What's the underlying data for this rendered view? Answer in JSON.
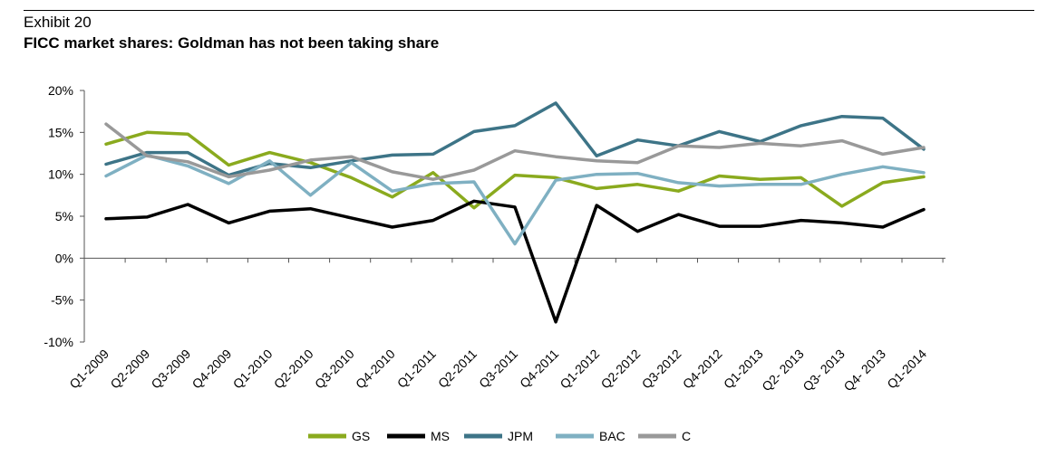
{
  "header": {
    "exhibit": "Exhibit 20",
    "title": "FICC market shares: Goldman has not been taking share"
  },
  "chart_data": {
    "type": "line",
    "title": "FICC market shares: Goldman has not been taking share",
    "xlabel": "",
    "ylabel": "",
    "ylim": [
      -10,
      20
    ],
    "yticks": [
      "20%",
      "15%",
      "10%",
      "5%",
      "0%",
      "-5%",
      "-10%"
    ],
    "ytick_values": [
      20,
      15,
      10,
      5,
      0,
      -5,
      -10
    ],
    "grid": false,
    "legend_position": "bottom",
    "categories": [
      "Q1-2009",
      "Q2-2009",
      "Q3-2009",
      "Q4-2009",
      "Q1-2010",
      "Q2-2010",
      "Q3-2010",
      "Q4-2010",
      "Q1-2011",
      "Q2-2011",
      "Q3-2011",
      "Q4-2011",
      "Q1-2012",
      "Q2-2012",
      "Q3-2012",
      "Q4-2012",
      "Q1-2013",
      "Q2- 2013",
      "Q3- 2013",
      "Q4- 2013",
      "Q1-2014"
    ],
    "series": [
      {
        "name": "GS",
        "color": "#8aaa1e",
        "values": [
          13.6,
          15.0,
          14.8,
          11.1,
          12.6,
          11.4,
          9.6,
          7.3,
          10.2,
          6.0,
          9.9,
          9.6,
          8.3,
          8.8,
          8.0,
          9.8,
          9.4,
          9.6,
          6.2,
          9.0,
          9.7
        ]
      },
      {
        "name": "MS",
        "color": "#000000",
        "values": [
          4.7,
          4.9,
          6.4,
          4.2,
          5.6,
          5.9,
          4.8,
          3.7,
          4.5,
          6.8,
          6.1,
          -7.6,
          6.3,
          3.2,
          5.2,
          3.8,
          3.8,
          4.5,
          4.2,
          3.7,
          5.8
        ]
      },
      {
        "name": "JPM",
        "color": "#3d7487",
        "values": [
          11.2,
          12.6,
          12.6,
          9.9,
          11.3,
          10.8,
          11.6,
          12.3,
          12.4,
          15.1,
          15.8,
          18.5,
          12.2,
          14.1,
          13.4,
          15.1,
          13.9,
          15.8,
          16.9,
          16.7,
          13.0
        ]
      },
      {
        "name": "BAC",
        "color": "#7fb0c2",
        "values": [
          9.8,
          12.3,
          11.0,
          8.9,
          11.6,
          7.5,
          11.4,
          8.0,
          8.9,
          9.1,
          1.7,
          9.3,
          10.0,
          10.1,
          9.0,
          8.6,
          8.8,
          8.8,
          10.0,
          10.9,
          10.2
        ]
      },
      {
        "name": "C",
        "color": "#999999",
        "values": [
          16.0,
          12.2,
          11.5,
          9.7,
          10.5,
          11.7,
          12.1,
          10.3,
          9.4,
          10.5,
          12.8,
          12.1,
          11.6,
          11.4,
          13.4,
          13.2,
          13.7,
          13.4,
          14.0,
          12.4,
          13.2
        ]
      }
    ]
  }
}
